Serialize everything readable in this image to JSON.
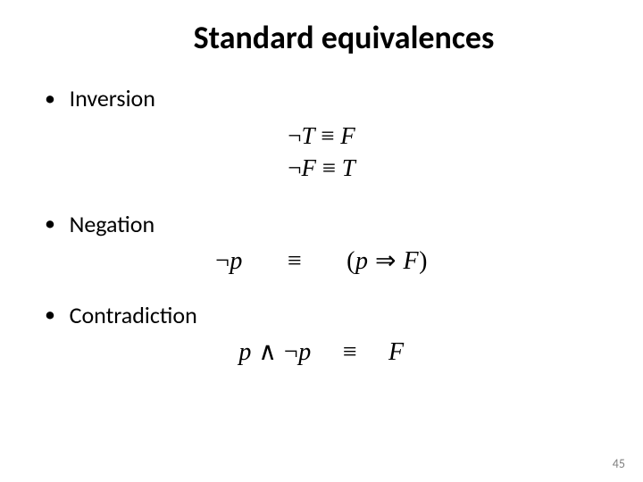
{
  "slide": {
    "title": "Standard equivalences",
    "page_number": "45",
    "background_color": "#ffffff",
    "title_fontsize": 36,
    "title_color": "#000000",
    "body_fontsize": 26,
    "formula_fontsize": 27,
    "page_number_color": "#808080",
    "sections": [
      {
        "label": "Inversion",
        "formulas": [
          "¬T ≡ F",
          "¬F ≡ T"
        ]
      },
      {
        "label": "Negation",
        "formulas": [
          "¬p     ≡     (p ⇒ F)"
        ]
      },
      {
        "label": "Contradiction",
        "formulas": [
          "p ∧ ¬p   ≡   F"
        ]
      }
    ]
  }
}
